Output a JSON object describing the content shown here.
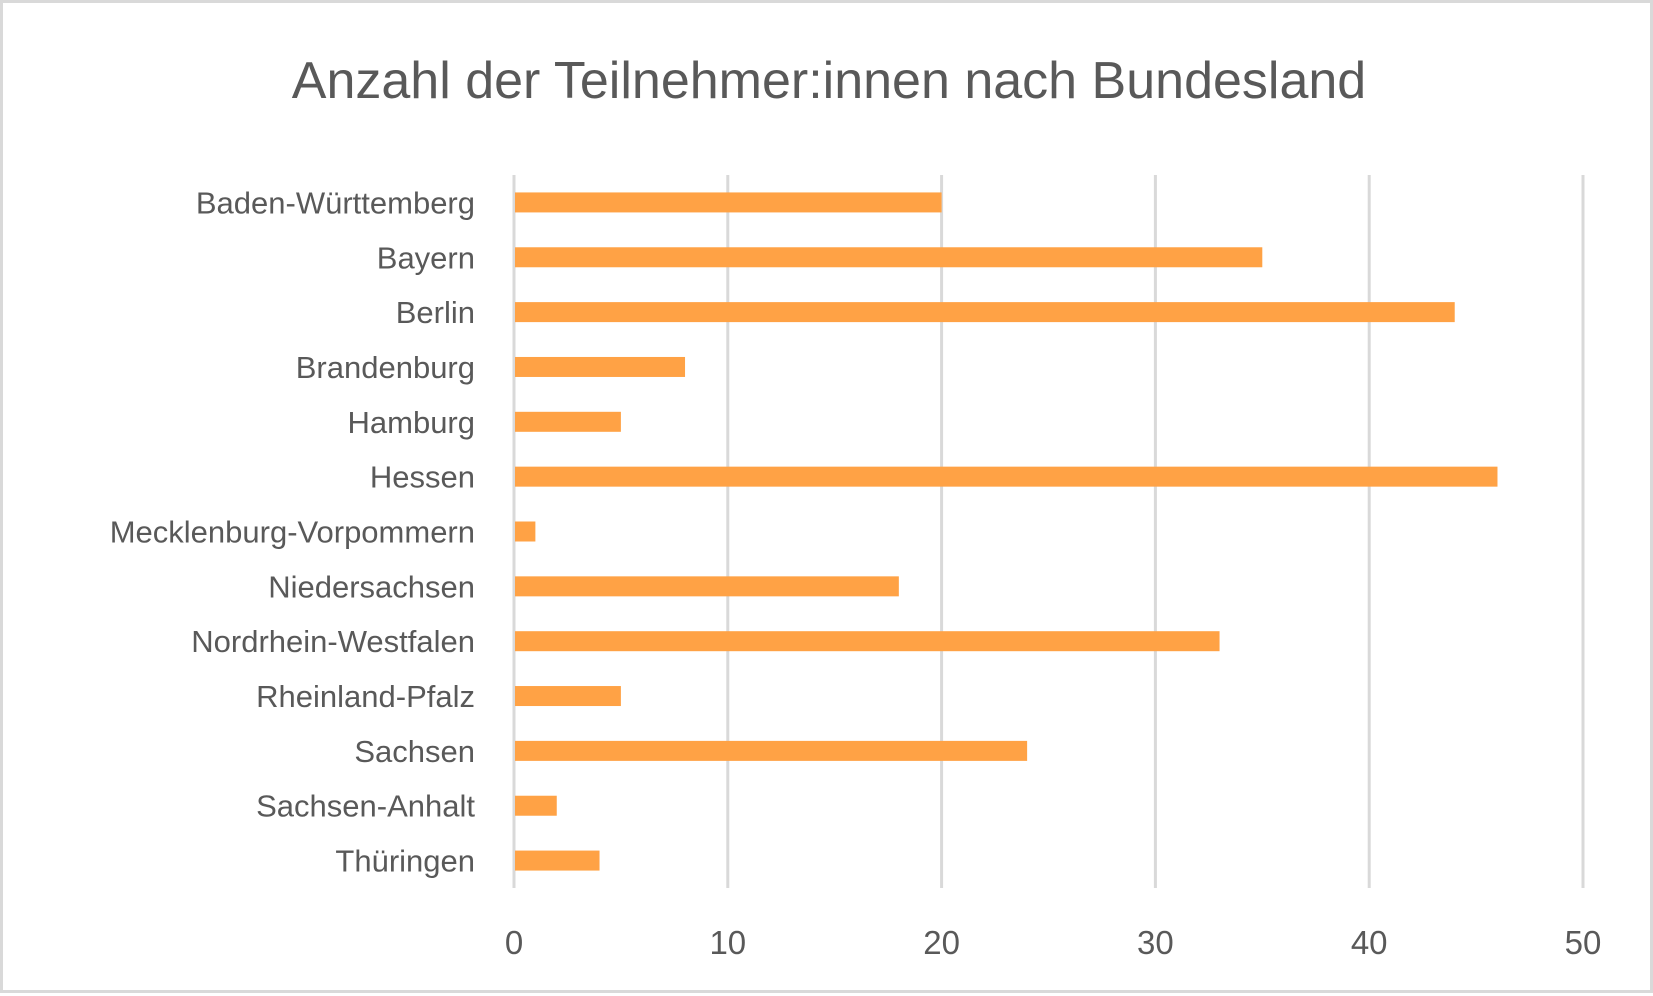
{
  "chart_data": {
    "type": "bar",
    "orientation": "horizontal",
    "title": "Anzahl der Teilnehmer:innen nach Bundesland",
    "xlabel": "",
    "ylabel": "",
    "categories": [
      "Baden-Württemberg",
      "Bayern",
      "Berlin",
      "Brandenburg",
      "Hamburg",
      "Hessen",
      "Mecklenburg-Vorpommern",
      "Niedersachsen",
      "Nordrhein-Westfalen",
      "Rheinland-Pfalz",
      "Sachsen",
      "Sachsen-Anhalt",
      "Thüringen"
    ],
    "values": [
      20,
      35,
      44,
      8,
      5,
      46,
      1,
      18,
      33,
      5,
      24,
      2,
      4
    ],
    "xlim": [
      0,
      50
    ],
    "xticks": [
      "0",
      "10",
      "20",
      "30",
      "40",
      "50"
    ],
    "grid": true,
    "legend": "none",
    "bar_color": "#ffa245",
    "text_color": "#595959",
    "grid_color": "#d9d9d9"
  }
}
